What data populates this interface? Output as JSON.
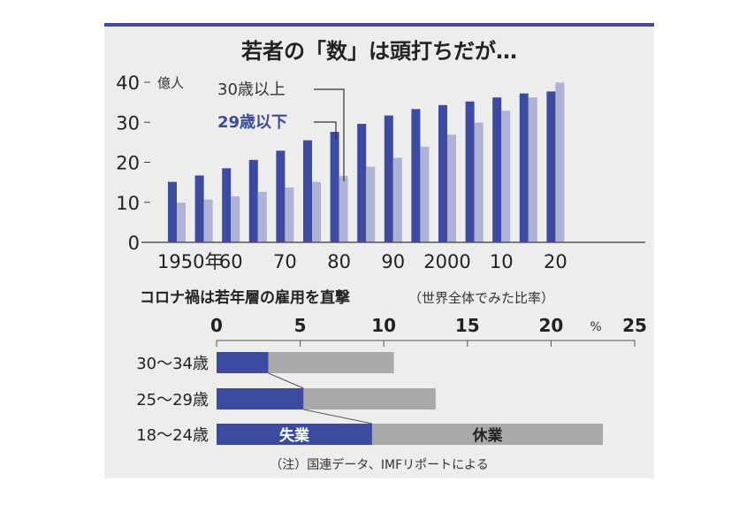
{
  "colors": {
    "dark": "#3c4aa0",
    "light": "#aeb2d6",
    "gray": "#a9a9a9",
    "panel": "#ededed",
    "border": "#3c4aa0"
  },
  "chart_data": [
    {
      "type": "bar",
      "title": "若者の「数」は頭打ちだが…",
      "ylabel": "億人",
      "ylim": [
        0,
        40
      ],
      "yticks": [
        "0",
        "10",
        "20",
        "30",
        "40"
      ],
      "x": [
        1950,
        1955,
        1960,
        1965,
        1970,
        1975,
        1980,
        1985,
        1990,
        1995,
        2000,
        2005,
        2010,
        2015,
        2020
      ],
      "xtick_labels": [
        {
          "label": "1950年",
          "year": 1950
        },
        {
          "label": "60",
          "year": 1960
        },
        {
          "label": "70",
          "year": 1970
        },
        {
          "label": "80",
          "year": 1980
        },
        {
          "label": "90",
          "year": 1990
        },
        {
          "label": "2000",
          "year": 2000
        },
        {
          "label": "10",
          "year": 2010
        },
        {
          "label": "20",
          "year": 2020
        }
      ],
      "series": [
        {
          "name": "30歳以上",
          "values": [
            15.1,
            16.7,
            18.5,
            20.6,
            22.9,
            25.5,
            27.6,
            29.6,
            31.7,
            33.3,
            34.3,
            35.2,
            36.2,
            37.2,
            37.7
          ]
        },
        {
          "name": "29歳以下",
          "values": [
            9.9,
            10.7,
            11.5,
            12.6,
            13.7,
            15.1,
            16.6,
            18.9,
            21.1,
            23.9,
            26.9,
            29.9,
            32.9,
            36.2,
            39.9
          ]
        }
      ]
    },
    {
      "type": "bar",
      "orientation": "horizontal",
      "stacked": true,
      "title": "コロナ禍は若年層の雇用を直撃",
      "subtitle": "（世界全体でみた比率）",
      "xlim": [
        0,
        25
      ],
      "xticks": [
        "0",
        "5",
        "10",
        "15",
        "20",
        "25"
      ],
      "unit": "%",
      "categories": [
        "30〜34歳",
        "25〜29歳",
        "18〜24歳"
      ],
      "series": [
        {
          "name": "失業",
          "values": [
            3.1,
            5.2,
            9.3
          ]
        },
        {
          "name": "休業",
          "values": [
            7.5,
            7.9,
            13.8
          ]
        }
      ],
      "note": "（注）国連データ、IMFリポートによる"
    }
  ]
}
